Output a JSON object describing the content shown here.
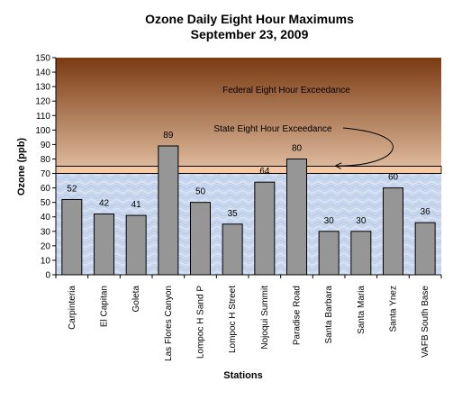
{
  "colors": {
    "federal_top": "#7b3a12",
    "federal_bottom": "#dcb89a",
    "state_band": "#f6c9a3",
    "plot_background": "#c9d7ee",
    "bar_fill": "#969696",
    "bar_stroke": "#000000"
  },
  "chart_data": {
    "type": "bar",
    "title": "Ozone Daily Eight Hour Maximums",
    "subtitle": "September 23, 2009",
    "xlabel": "Stations",
    "ylabel": "Ozone (ppb)",
    "ylim": [
      0,
      150
    ],
    "yticks": [
      "0",
      "10",
      "20",
      "30",
      "40",
      "50",
      "60",
      "70",
      "80",
      "90",
      "100",
      "110",
      "120",
      "130",
      "140",
      "150"
    ],
    "categories": [
      "Carpinteria",
      "El Capitan",
      "Goleta",
      "Las Flores Canyon",
      "Lompoc H Sand P",
      "Lompoc H Street",
      "Nojoqui Summit",
      "Paradise Road",
      "Santa Barbara",
      "Santa Maria",
      "Santa Ynez",
      "VAFB South Base"
    ],
    "values": [
      52,
      42,
      41,
      89,
      50,
      35,
      64,
      80,
      30,
      30,
      60,
      36
    ],
    "data_labels": [
      "52",
      "42",
      "41",
      "89",
      "50",
      "35",
      "64",
      "80",
      "30",
      "30",
      "60",
      "36"
    ],
    "grid": false,
    "legend": "none",
    "thresholds": {
      "state_exceedance_ppb": 70,
      "federal_exceedance_ppb": 75
    },
    "annotations": {
      "federal": "Federal Eight Hour Exceedance",
      "state": "State Eight Hour Exceedance"
    }
  }
}
